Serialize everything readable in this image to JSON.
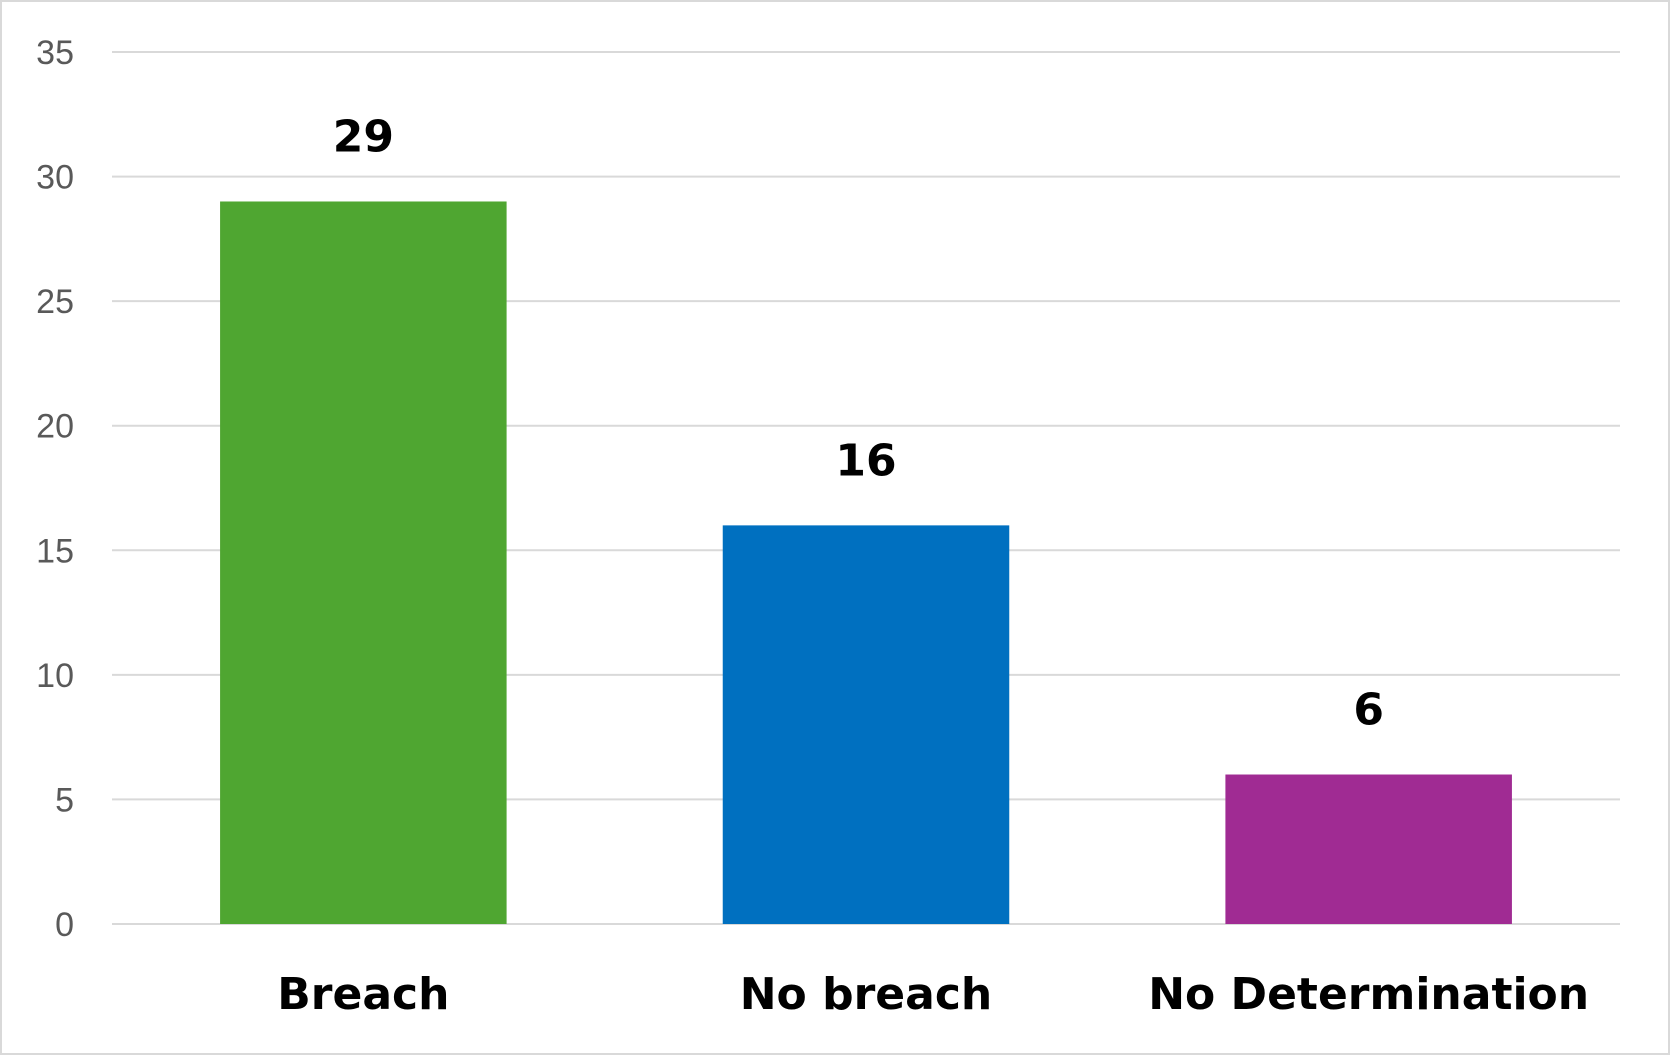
{
  "chart_data": {
    "type": "bar",
    "title": "",
    "xlabel": "",
    "ylabel": "",
    "categories": [
      "Breach",
      "No breach",
      "No Determination"
    ],
    "values": [
      29,
      16,
      6
    ],
    "colors": [
      "#4fa631",
      "#0070c0",
      "#a02b93"
    ],
    "ylim": [
      0,
      35
    ],
    "yticks": [
      0,
      5,
      10,
      15,
      20,
      25,
      30,
      35
    ],
    "grid": true,
    "legend": "none",
    "data_labels": true
  }
}
